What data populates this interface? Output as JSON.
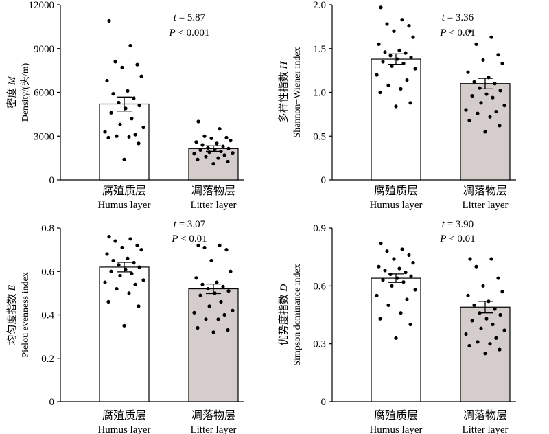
{
  "chart_data": [
    {
      "type": "bar",
      "ylabel_zh": "密度",
      "ylabel_sym": "M",
      "ylabel_en": "Density/(头/m)",
      "ylim": [
        0,
        12000
      ],
      "yticks": [
        0,
        3000,
        6000,
        9000,
        12000
      ],
      "ytick_labels": [
        "0",
        "3000",
        "6000",
        "9000",
        "12000"
      ],
      "categories_zh": [
        "腐殖质层",
        "凋落物层"
      ],
      "categories_en": [
        "Humus layer",
        "Litter layer"
      ],
      "values": [
        5200,
        2150
      ],
      "errors": [
        480,
        190
      ],
      "bar_colors": [
        "#ffffff",
        "#d4cdcb"
      ],
      "stat_t": "= 5.87",
      "stat_p": "< 0.001",
      "points": [
        [
          10900,
          9200,
          8100,
          7900,
          7700,
          7100,
          6800,
          6100,
          5900,
          5600,
          5300,
          5100,
          4900,
          4600,
          4200,
          3800,
          3600,
          3300,
          3100,
          3000,
          2950,
          2900,
          2500,
          1400
        ],
        [
          4000,
          3500,
          3000,
          2900,
          2850,
          2700,
          2600,
          2500,
          2400,
          2300,
          2200,
          2150,
          2100,
          2050,
          1950,
          1900,
          1850,
          1800,
          1700,
          1600,
          1500,
          1400,
          1250,
          1100
        ]
      ]
    },
    {
      "type": "bar",
      "ylabel_zh": "多样性指数",
      "ylabel_sym": "H",
      "ylabel_en": "Shannon−Wiener index",
      "ylim": [
        0,
        2.0
      ],
      "yticks": [
        0,
        0.5,
        1.0,
        1.5,
        2.0
      ],
      "ytick_labels": [
        "0",
        "0.5",
        "1.0",
        "1.5",
        "2.0"
      ],
      "categories_zh": [
        "腐殖质层",
        "凋落物层"
      ],
      "categories_en": [
        "Humus layer",
        "Litter layer"
      ],
      "values": [
        1.38,
        1.1
      ],
      "errors": [
        0.06,
        0.06
      ],
      "bar_colors": [
        "#ffffff",
        "#d4cdcb"
      ],
      "stat_t": "= 3.36",
      "stat_p": "< 0.01",
      "points": [
        [
          1.97,
          1.83,
          1.78,
          1.76,
          1.7,
          1.63,
          1.55,
          1.48,
          1.46,
          1.45,
          1.42,
          1.4,
          1.38,
          1.35,
          1.33,
          1.3,
          1.27,
          1.2,
          1.14,
          1.08,
          1.04,
          1.0,
          0.88,
          0.84
        ],
        [
          1.7,
          1.63,
          1.55,
          1.43,
          1.37,
          1.33,
          1.23,
          1.17,
          1.12,
          1.1,
          1.05,
          1.02,
          0.98,
          0.96,
          0.94,
          0.88,
          0.85,
          0.8,
          0.78,
          0.76,
          0.72,
          0.68,
          0.62,
          0.55
        ]
      ]
    },
    {
      "type": "bar",
      "ylabel_zh": "均匀度指数",
      "ylabel_sym": "E",
      "ylabel_en": "Pielou evenness index",
      "ylim": [
        0,
        0.8
      ],
      "yticks": [
        0,
        0.2,
        0.4,
        0.6,
        0.8
      ],
      "ytick_labels": [
        "0",
        "0.2",
        "0.4",
        "0.6",
        "0.8"
      ],
      "categories_zh": [
        "腐殖质层",
        "凋落物层"
      ],
      "categories_en": [
        "Humus layer",
        "Litter layer"
      ],
      "values": [
        0.62,
        0.52
      ],
      "errors": [
        0.022,
        0.022
      ],
      "bar_colors": [
        "#ffffff",
        "#d4cdcb"
      ],
      "stat_t": "= 3.07",
      "stat_p": "< 0.01",
      "points": [
        [
          0.76,
          0.75,
          0.74,
          0.72,
          0.71,
          0.7,
          0.68,
          0.66,
          0.65,
          0.64,
          0.63,
          0.62,
          0.61,
          0.6,
          0.59,
          0.58,
          0.56,
          0.55,
          0.54,
          0.52,
          0.5,
          0.46,
          0.44,
          0.35
        ],
        [
          0.72,
          0.72,
          0.71,
          0.7,
          0.65,
          0.6,
          0.57,
          0.55,
          0.54,
          0.53,
          0.52,
          0.51,
          0.5,
          0.49,
          0.46,
          0.44,
          0.42,
          0.41,
          0.4,
          0.38,
          0.38,
          0.34,
          0.33,
          0.32
        ]
      ]
    },
    {
      "type": "bar",
      "ylabel_zh": "优势度指数",
      "ylabel_sym": "D",
      "ylabel_en": "Simpson dominance index",
      "ylim": [
        0,
        0.9
      ],
      "yticks": [
        0,
        0.3,
        0.6,
        0.9
      ],
      "ytick_labels": [
        "0",
        "0.3",
        "0.6",
        "0.9"
      ],
      "categories_zh": [
        "腐殖质层",
        "凋落物层"
      ],
      "categories_en": [
        "Humus layer",
        "Litter layer"
      ],
      "values": [
        0.64,
        0.49
      ],
      "errors": [
        0.022,
        0.03
      ],
      "bar_colors": [
        "#ffffff",
        "#d4cdcb"
      ],
      "stat_t": "= 3.90",
      "stat_p": "< 0.01",
      "points": [
        [
          0.82,
          0.79,
          0.78,
          0.76,
          0.74,
          0.72,
          0.7,
          0.69,
          0.68,
          0.67,
          0.66,
          0.65,
          0.64,
          0.63,
          0.62,
          0.6,
          0.58,
          0.55,
          0.53,
          0.5,
          0.46,
          0.43,
          0.4,
          0.33
        ],
        [
          0.74,
          0.74,
          0.7,
          0.64,
          0.6,
          0.57,
          0.55,
          0.52,
          0.5,
          0.48,
          0.46,
          0.45,
          0.43,
          0.42,
          0.4,
          0.38,
          0.37,
          0.35,
          0.33,
          0.31,
          0.3,
          0.29,
          0.27,
          0.25
        ]
      ]
    }
  ]
}
